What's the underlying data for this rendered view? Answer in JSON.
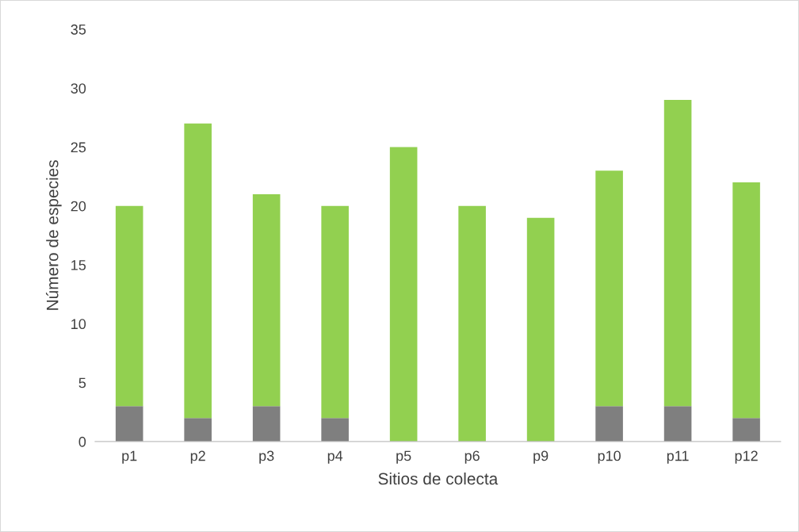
{
  "chart_data": {
    "type": "bar",
    "stacked": true,
    "xlabel": "Sitios de colecta",
    "ylabel": "Número de especies",
    "categories": [
      "p1",
      "p2",
      "p3",
      "p4",
      "p5",
      "p6",
      "p9",
      "p10",
      "p11",
      "p12"
    ],
    "series": [
      {
        "color": "#7f7f7f",
        "values": [
          3,
          2,
          3,
          2,
          0,
          0,
          0,
          3,
          3,
          2
        ]
      },
      {
        "color": "#92d050",
        "values": [
          17,
          25,
          18,
          18,
          25,
          20,
          19,
          20,
          26,
          20
        ]
      }
    ],
    "ylim": [
      0,
      35
    ],
    "yticks": [
      0,
      5,
      10,
      15,
      20,
      25,
      30,
      35
    ],
    "grid": false
  }
}
